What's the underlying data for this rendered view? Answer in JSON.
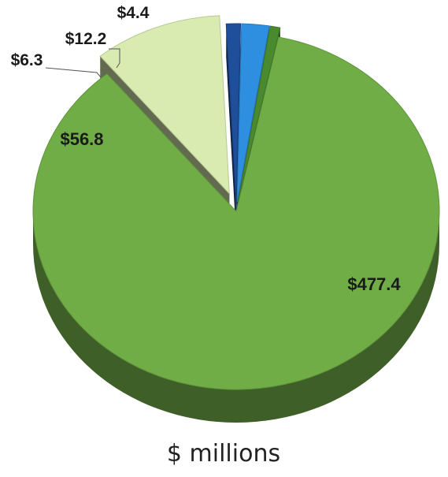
{
  "chart_data": {
    "type": "pie",
    "title": "",
    "caption": "$ millions",
    "slices": [
      {
        "label": "$477.4",
        "value": 477.4,
        "color": "#70ad47",
        "exploded": false
      },
      {
        "label": "$56.8",
        "value": 56.8,
        "color": "#d9ebb0",
        "exploded": true
      },
      {
        "label": "$6.3",
        "value": 6.3,
        "color": "#1f4e9a",
        "exploded": true
      },
      {
        "label": "$12.2",
        "value": 12.2,
        "color": "#2e8fe0",
        "exploded": true
      },
      {
        "label": "$4.4",
        "value": 4.4,
        "color": "#4a8a2e",
        "exploded": true
      }
    ]
  }
}
